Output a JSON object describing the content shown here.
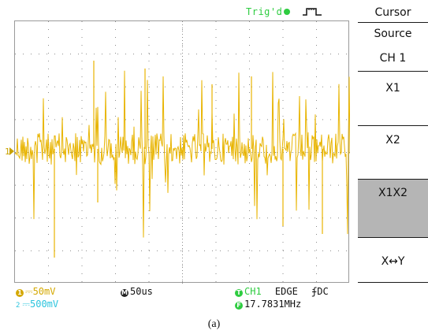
{
  "header": {
    "trigger_status": "Trig'd",
    "trigger_color": "#2ecc40"
  },
  "menu": {
    "title": "Cursor",
    "source_label": "Source",
    "source_value": "CH 1",
    "items": [
      "X1",
      "X2",
      "X1X2",
      "X↔Y"
    ],
    "selected_item": "X1X2"
  },
  "status_bar": {
    "ch1_badge": "1",
    "ch1_scale": "50mV",
    "ch2_badge": "2",
    "ch2_scale": "500mV",
    "time_badge": "M",
    "timebase": "50us",
    "trig_badge": "T",
    "trig_source": "CH1",
    "trig_type": "EDGE",
    "trig_coupling": "DC",
    "freq_badge": "F",
    "frequency": "17.7831MHz"
  },
  "waveform": {
    "channel": "CH1",
    "marker": "1",
    "color": "#e8b400"
  },
  "colors": {
    "ch1": "#d4a800",
    "ch2": "#2bc4dd",
    "green": "#2ecc40",
    "selected_menu": "#b5b5b5"
  },
  "caption": "(a)"
}
